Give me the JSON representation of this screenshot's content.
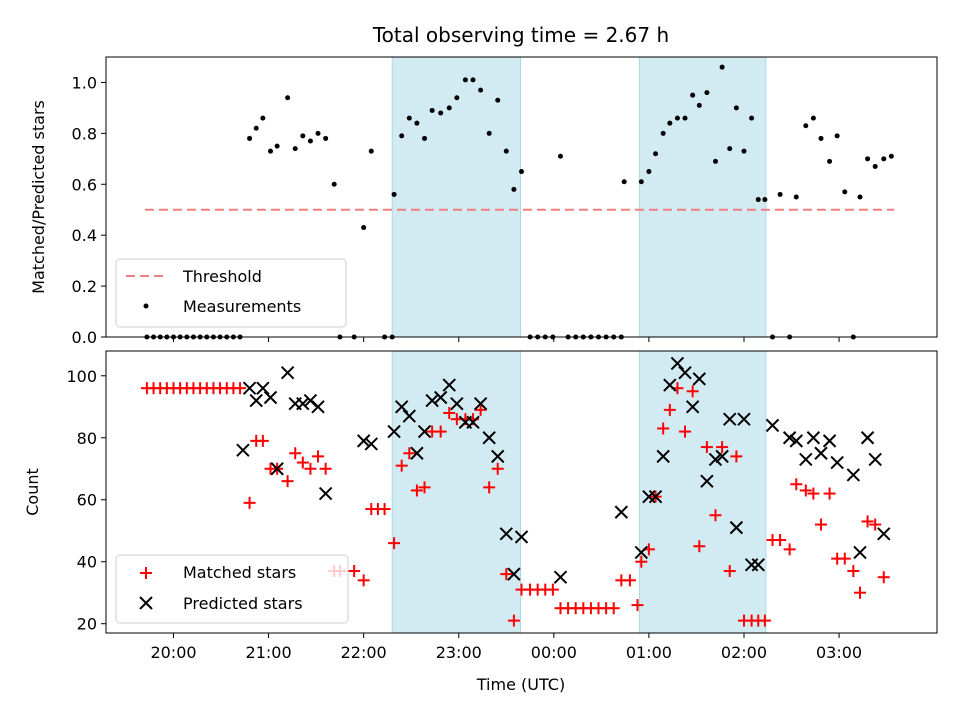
{
  "chart_data": {
    "type": "scatter",
    "title": "Total observing time = 2.67 h",
    "xlabel": "Time (UTC)",
    "x_range_hours": [
      19.29,
      28.03
    ],
    "x_ticks": [
      {
        "h": 20,
        "label": "20:00"
      },
      {
        "h": 21,
        "label": "21:00"
      },
      {
        "h": 22,
        "label": "22:00"
      },
      {
        "h": 23,
        "label": "23:00"
      },
      {
        "h": 24,
        "label": "00:00"
      },
      {
        "h": 25,
        "label": "01:00"
      },
      {
        "h": 26,
        "label": "02:00"
      },
      {
        "h": 27,
        "label": "03:00"
      }
    ],
    "shaded_intervals_hours": [
      [
        22.3,
        23.65
      ],
      [
        24.9,
        26.23
      ]
    ],
    "shade_color": "#add8e6",
    "top_panel": {
      "ylabel": "Matched/Predicted stars",
      "ylim": [
        0.0,
        1.1
      ],
      "y_ticks": [
        {
          "v": 0.0,
          "label": "0.0"
        },
        {
          "v": 0.2,
          "label": "0.2"
        },
        {
          "v": 0.4,
          "label": "0.4"
        },
        {
          "v": 0.6,
          "label": "0.6"
        },
        {
          "v": 0.8,
          "label": "0.8"
        },
        {
          "v": 1.0,
          "label": "1.0"
        }
      ],
      "threshold": {
        "name": "Threshold",
        "y": 0.5,
        "x_range_hours": [
          19.7,
          27.58
        ],
        "color": "#f08080"
      },
      "measurements": {
        "name": "Measurements",
        "color": "#000000",
        "points": [
          [
            19.72,
            0
          ],
          [
            19.79,
            0
          ],
          [
            19.86,
            0
          ],
          [
            19.93,
            0
          ],
          [
            20.0,
            0
          ],
          [
            20.07,
            0
          ],
          [
            20.14,
            0
          ],
          [
            20.21,
            0
          ],
          [
            20.28,
            0
          ],
          [
            20.35,
            0
          ],
          [
            20.42,
            0
          ],
          [
            20.49,
            0
          ],
          [
            20.56,
            0
          ],
          [
            20.63,
            0
          ],
          [
            20.7,
            0
          ],
          [
            20.8,
            0.78
          ],
          [
            20.87,
            0.82
          ],
          [
            20.94,
            0.86
          ],
          [
            21.02,
            0.73
          ],
          [
            21.09,
            0.75
          ],
          [
            21.2,
            0.94
          ],
          [
            21.28,
            0.74
          ],
          [
            21.36,
            0.79
          ],
          [
            21.44,
            0.77
          ],
          [
            21.52,
            0.8
          ],
          [
            21.6,
            0.78
          ],
          [
            21.69,
            0.6
          ],
          [
            21.75,
            0
          ],
          [
            21.9,
            0
          ],
          [
            22.0,
            0.43
          ],
          [
            22.08,
            0.73
          ],
          [
            22.22,
            0
          ],
          [
            22.3,
            0
          ],
          [
            22.32,
            0.56
          ],
          [
            22.4,
            0.79
          ],
          [
            22.48,
            0.86
          ],
          [
            22.56,
            0.84
          ],
          [
            22.64,
            0.78
          ],
          [
            22.72,
            0.89
          ],
          [
            22.81,
            0.88
          ],
          [
            22.9,
            0.9
          ],
          [
            22.98,
            0.94
          ],
          [
            23.07,
            1.01
          ],
          [
            23.15,
            1.01
          ],
          [
            23.23,
            0.97
          ],
          [
            23.32,
            0.8
          ],
          [
            23.41,
            0.93
          ],
          [
            23.5,
            0.73
          ],
          [
            23.58,
            0.58
          ],
          [
            23.66,
            0.65
          ],
          [
            23.75,
            0
          ],
          [
            23.83,
            0
          ],
          [
            23.91,
            0
          ],
          [
            23.99,
            0
          ],
          [
            24.07,
            0.71
          ],
          [
            24.15,
            0
          ],
          [
            24.23,
            0
          ],
          [
            24.31,
            0
          ],
          [
            24.39,
            0
          ],
          [
            24.47,
            0
          ],
          [
            24.55,
            0
          ],
          [
            24.63,
            0
          ],
          [
            24.71,
            0
          ],
          [
            24.74,
            0.61
          ],
          [
            24.92,
            0.61
          ],
          [
            25.0,
            0.65
          ],
          [
            25.07,
            0.72
          ],
          [
            25.15,
            0.8
          ],
          [
            25.22,
            0.84
          ],
          [
            25.3,
            0.86
          ],
          [
            25.38,
            0.86
          ],
          [
            25.46,
            0.95
          ],
          [
            25.53,
            0.91
          ],
          [
            25.61,
            0.96
          ],
          [
            25.7,
            0.69
          ],
          [
            25.77,
            1.06
          ],
          [
            25.85,
            0.74
          ],
          [
            25.92,
            0.9
          ],
          [
            26.0,
            0.73
          ],
          [
            26.08,
            0.86
          ],
          [
            26.15,
            0.54
          ],
          [
            26.22,
            0.54
          ],
          [
            26.3,
            0
          ],
          [
            26.38,
            0.56
          ],
          [
            26.48,
            0
          ],
          [
            26.55,
            0.55
          ],
          [
            26.65,
            0.83
          ],
          [
            26.73,
            0.86
          ],
          [
            26.81,
            0.78
          ],
          [
            26.9,
            0.69
          ],
          [
            26.98,
            0.79
          ],
          [
            27.06,
            0.57
          ],
          [
            27.15,
            0
          ],
          [
            27.22,
            0.55
          ],
          [
            27.3,
            0.7
          ],
          [
            27.38,
            0.67
          ],
          [
            27.47,
            0.7
          ],
          [
            27.55,
            0.71
          ]
        ]
      }
    },
    "bottom_panel": {
      "ylabel": "Count",
      "ylim": [
        17,
        108
      ],
      "y_ticks": [
        {
          "v": 20,
          "label": "20"
        },
        {
          "v": 40,
          "label": "40"
        },
        {
          "v": 60,
          "label": "60"
        },
        {
          "v": 80,
          "label": "80"
        },
        {
          "v": 100,
          "label": "100"
        }
      ],
      "series": [
        {
          "name": "Matched stars",
          "marker": "plus",
          "color": "#ff0000",
          "points": [
            [
              19.72,
              96
            ],
            [
              19.79,
              96
            ],
            [
              19.86,
              96
            ],
            [
              19.93,
              96
            ],
            [
              20.0,
              96
            ],
            [
              20.07,
              96
            ],
            [
              20.14,
              96
            ],
            [
              20.21,
              96
            ],
            [
              20.28,
              96
            ],
            [
              20.35,
              96
            ],
            [
              20.42,
              96
            ],
            [
              20.49,
              96
            ],
            [
              20.56,
              96
            ],
            [
              20.63,
              96
            ],
            [
              20.7,
              96
            ],
            [
              20.8,
              59
            ],
            [
              20.87,
              79
            ],
            [
              20.94,
              79
            ],
            [
              21.02,
              70
            ],
            [
              21.09,
              70
            ],
            [
              21.2,
              66
            ],
            [
              21.28,
              75
            ],
            [
              21.36,
              72
            ],
            [
              21.44,
              70
            ],
            [
              21.52,
              74
            ],
            [
              21.6,
              70
            ],
            [
              21.69,
              37
            ],
            [
              21.75,
              37
            ],
            [
              21.9,
              37
            ],
            [
              22.0,
              34
            ],
            [
              22.08,
              57
            ],
            [
              22.15,
              57
            ],
            [
              22.22,
              57
            ],
            [
              22.32,
              46
            ],
            [
              22.4,
              71
            ],
            [
              22.48,
              75
            ],
            [
              22.56,
              63
            ],
            [
              22.64,
              64
            ],
            [
              22.72,
              82
            ],
            [
              22.81,
              82
            ],
            [
              22.9,
              88
            ],
            [
              22.98,
              86
            ],
            [
              23.07,
              86
            ],
            [
              23.15,
              86
            ],
            [
              23.23,
              89
            ],
            [
              23.32,
              64
            ],
            [
              23.41,
              70
            ],
            [
              23.5,
              36
            ],
            [
              23.58,
              21
            ],
            [
              23.66,
              31
            ],
            [
              23.75,
              31
            ],
            [
              23.83,
              31
            ],
            [
              23.91,
              31
            ],
            [
              23.99,
              31
            ],
            [
              24.07,
              25
            ],
            [
              24.15,
              25
            ],
            [
              24.23,
              25
            ],
            [
              24.31,
              25
            ],
            [
              24.39,
              25
            ],
            [
              24.47,
              25
            ],
            [
              24.55,
              25
            ],
            [
              24.63,
              25
            ],
            [
              24.71,
              34
            ],
            [
              24.8,
              34
            ],
            [
              24.88,
              26
            ],
            [
              24.92,
              40
            ],
            [
              25.0,
              44
            ],
            [
              25.07,
              61
            ],
            [
              25.15,
              83
            ],
            [
              25.22,
              89
            ],
            [
              25.3,
              96
            ],
            [
              25.38,
              82
            ],
            [
              25.46,
              95
            ],
            [
              25.53,
              45
            ],
            [
              25.61,
              77
            ],
            [
              25.7,
              55
            ],
            [
              25.77,
              77
            ],
            [
              25.85,
              37
            ],
            [
              25.92,
              74
            ],
            [
              26.0,
              21
            ],
            [
              26.08,
              21
            ],
            [
              26.15,
              21
            ],
            [
              26.22,
              21
            ],
            [
              26.3,
              47
            ],
            [
              26.38,
              47
            ],
            [
              26.48,
              44
            ],
            [
              26.55,
              65
            ],
            [
              26.65,
              63
            ],
            [
              26.73,
              62
            ],
            [
              26.81,
              52
            ],
            [
              26.9,
              62
            ],
            [
              26.98,
              41
            ],
            [
              27.06,
              41
            ],
            [
              27.15,
              37
            ],
            [
              27.22,
              30
            ],
            [
              27.3,
              53
            ],
            [
              27.38,
              52
            ],
            [
              27.47,
              35
            ]
          ]
        },
        {
          "name": "Predicted stars",
          "marker": "x",
          "color": "#000000",
          "points": [
            [
              20.73,
              76
            ],
            [
              20.8,
              96
            ],
            [
              20.87,
              92
            ],
            [
              20.94,
              96
            ],
            [
              21.02,
              93
            ],
            [
              21.09,
              70
            ],
            [
              21.2,
              101
            ],
            [
              21.28,
              91
            ],
            [
              21.36,
              91
            ],
            [
              21.44,
              92
            ],
            [
              21.52,
              90
            ],
            [
              21.6,
              62
            ],
            [
              22.0,
              79
            ],
            [
              22.08,
              78
            ],
            [
              22.32,
              82
            ],
            [
              22.4,
              90
            ],
            [
              22.48,
              87
            ],
            [
              22.56,
              75
            ],
            [
              22.64,
              82
            ],
            [
              22.72,
              92
            ],
            [
              22.81,
              93
            ],
            [
              22.9,
              97
            ],
            [
              22.98,
              91
            ],
            [
              23.07,
              85
            ],
            [
              23.15,
              85
            ],
            [
              23.23,
              91
            ],
            [
              23.32,
              80
            ],
            [
              23.41,
              74
            ],
            [
              23.5,
              49
            ],
            [
              23.58,
              36
            ],
            [
              23.66,
              48
            ],
            [
              24.07,
              35
            ],
            [
              24.71,
              56
            ],
            [
              24.92,
              43
            ],
            [
              25.0,
              61
            ],
            [
              25.07,
              61
            ],
            [
              25.15,
              74
            ],
            [
              25.22,
              97
            ],
            [
              25.3,
              104
            ],
            [
              25.38,
              101
            ],
            [
              25.46,
              90
            ],
            [
              25.53,
              99
            ],
            [
              25.61,
              66
            ],
            [
              25.7,
              73
            ],
            [
              25.77,
              74
            ],
            [
              25.85,
              86
            ],
            [
              25.92,
              51
            ],
            [
              26.0,
              86
            ],
            [
              26.08,
              39
            ],
            [
              26.15,
              39
            ],
            [
              26.3,
              84
            ],
            [
              26.48,
              80
            ],
            [
              26.55,
              79
            ],
            [
              26.65,
              73
            ],
            [
              26.73,
              80
            ],
            [
              26.81,
              75
            ],
            [
              26.9,
              79
            ],
            [
              26.98,
              72
            ],
            [
              27.15,
              68
            ],
            [
              27.22,
              43
            ],
            [
              27.3,
              80
            ],
            [
              27.38,
              73
            ],
            [
              27.47,
              49
            ]
          ]
        }
      ]
    },
    "legend_top": {
      "placement": "lower-left",
      "entries": [
        "Threshold",
        "Measurements"
      ]
    },
    "legend_bottom": {
      "placement": "lower-left",
      "entries": [
        "Matched stars",
        "Predicted stars"
      ]
    }
  }
}
